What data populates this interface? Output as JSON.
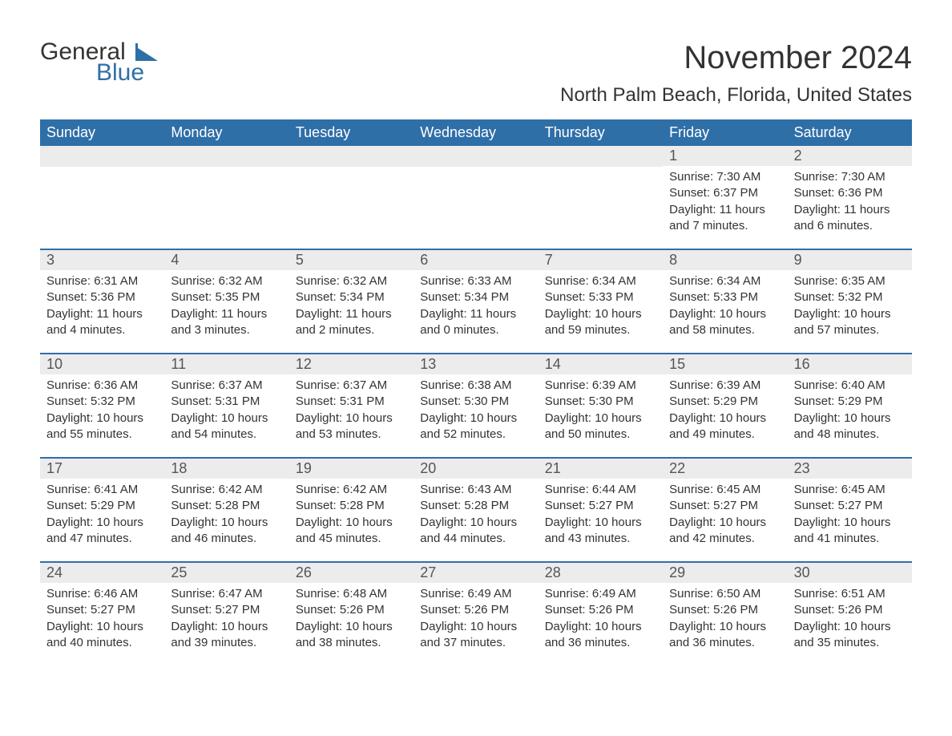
{
  "brand": {
    "top": "General",
    "bottom": "Blue",
    "icon_color": "#2f6fa8"
  },
  "title": "November 2024",
  "location": "North Palm Beach, Florida, United States",
  "colors": {
    "header_bg": "#2f6fa8",
    "header_text": "#ffffff",
    "daynum_bg": "#ececec",
    "row_border": "#2f6fa8",
    "body_text": "#333333",
    "page_bg": "#ffffff"
  },
  "weekdays": [
    "Sunday",
    "Monday",
    "Tuesday",
    "Wednesday",
    "Thursday",
    "Friday",
    "Saturday"
  ],
  "weeks": [
    [
      null,
      null,
      null,
      null,
      null,
      {
        "n": "1",
        "sunrise": "Sunrise: 7:30 AM",
        "sunset": "Sunset: 6:37 PM",
        "day1": "Daylight: 11 hours",
        "day2": "and 7 minutes."
      },
      {
        "n": "2",
        "sunrise": "Sunrise: 7:30 AM",
        "sunset": "Sunset: 6:36 PM",
        "day1": "Daylight: 11 hours",
        "day2": "and 6 minutes."
      }
    ],
    [
      {
        "n": "3",
        "sunrise": "Sunrise: 6:31 AM",
        "sunset": "Sunset: 5:36 PM",
        "day1": "Daylight: 11 hours",
        "day2": "and 4 minutes."
      },
      {
        "n": "4",
        "sunrise": "Sunrise: 6:32 AM",
        "sunset": "Sunset: 5:35 PM",
        "day1": "Daylight: 11 hours",
        "day2": "and 3 minutes."
      },
      {
        "n": "5",
        "sunrise": "Sunrise: 6:32 AM",
        "sunset": "Sunset: 5:34 PM",
        "day1": "Daylight: 11 hours",
        "day2": "and 2 minutes."
      },
      {
        "n": "6",
        "sunrise": "Sunrise: 6:33 AM",
        "sunset": "Sunset: 5:34 PM",
        "day1": "Daylight: 11 hours",
        "day2": "and 0 minutes."
      },
      {
        "n": "7",
        "sunrise": "Sunrise: 6:34 AM",
        "sunset": "Sunset: 5:33 PM",
        "day1": "Daylight: 10 hours",
        "day2": "and 59 minutes."
      },
      {
        "n": "8",
        "sunrise": "Sunrise: 6:34 AM",
        "sunset": "Sunset: 5:33 PM",
        "day1": "Daylight: 10 hours",
        "day2": "and 58 minutes."
      },
      {
        "n": "9",
        "sunrise": "Sunrise: 6:35 AM",
        "sunset": "Sunset: 5:32 PM",
        "day1": "Daylight: 10 hours",
        "day2": "and 57 minutes."
      }
    ],
    [
      {
        "n": "10",
        "sunrise": "Sunrise: 6:36 AM",
        "sunset": "Sunset: 5:32 PM",
        "day1": "Daylight: 10 hours",
        "day2": "and 55 minutes."
      },
      {
        "n": "11",
        "sunrise": "Sunrise: 6:37 AM",
        "sunset": "Sunset: 5:31 PM",
        "day1": "Daylight: 10 hours",
        "day2": "and 54 minutes."
      },
      {
        "n": "12",
        "sunrise": "Sunrise: 6:37 AM",
        "sunset": "Sunset: 5:31 PM",
        "day1": "Daylight: 10 hours",
        "day2": "and 53 minutes."
      },
      {
        "n": "13",
        "sunrise": "Sunrise: 6:38 AM",
        "sunset": "Sunset: 5:30 PM",
        "day1": "Daylight: 10 hours",
        "day2": "and 52 minutes."
      },
      {
        "n": "14",
        "sunrise": "Sunrise: 6:39 AM",
        "sunset": "Sunset: 5:30 PM",
        "day1": "Daylight: 10 hours",
        "day2": "and 50 minutes."
      },
      {
        "n": "15",
        "sunrise": "Sunrise: 6:39 AM",
        "sunset": "Sunset: 5:29 PM",
        "day1": "Daylight: 10 hours",
        "day2": "and 49 minutes."
      },
      {
        "n": "16",
        "sunrise": "Sunrise: 6:40 AM",
        "sunset": "Sunset: 5:29 PM",
        "day1": "Daylight: 10 hours",
        "day2": "and 48 minutes."
      }
    ],
    [
      {
        "n": "17",
        "sunrise": "Sunrise: 6:41 AM",
        "sunset": "Sunset: 5:29 PM",
        "day1": "Daylight: 10 hours",
        "day2": "and 47 minutes."
      },
      {
        "n": "18",
        "sunrise": "Sunrise: 6:42 AM",
        "sunset": "Sunset: 5:28 PM",
        "day1": "Daylight: 10 hours",
        "day2": "and 46 minutes."
      },
      {
        "n": "19",
        "sunrise": "Sunrise: 6:42 AM",
        "sunset": "Sunset: 5:28 PM",
        "day1": "Daylight: 10 hours",
        "day2": "and 45 minutes."
      },
      {
        "n": "20",
        "sunrise": "Sunrise: 6:43 AM",
        "sunset": "Sunset: 5:28 PM",
        "day1": "Daylight: 10 hours",
        "day2": "and 44 minutes."
      },
      {
        "n": "21",
        "sunrise": "Sunrise: 6:44 AM",
        "sunset": "Sunset: 5:27 PM",
        "day1": "Daylight: 10 hours",
        "day2": "and 43 minutes."
      },
      {
        "n": "22",
        "sunrise": "Sunrise: 6:45 AM",
        "sunset": "Sunset: 5:27 PM",
        "day1": "Daylight: 10 hours",
        "day2": "and 42 minutes."
      },
      {
        "n": "23",
        "sunrise": "Sunrise: 6:45 AM",
        "sunset": "Sunset: 5:27 PM",
        "day1": "Daylight: 10 hours",
        "day2": "and 41 minutes."
      }
    ],
    [
      {
        "n": "24",
        "sunrise": "Sunrise: 6:46 AM",
        "sunset": "Sunset: 5:27 PM",
        "day1": "Daylight: 10 hours",
        "day2": "and 40 minutes."
      },
      {
        "n": "25",
        "sunrise": "Sunrise: 6:47 AM",
        "sunset": "Sunset: 5:27 PM",
        "day1": "Daylight: 10 hours",
        "day2": "and 39 minutes."
      },
      {
        "n": "26",
        "sunrise": "Sunrise: 6:48 AM",
        "sunset": "Sunset: 5:26 PM",
        "day1": "Daylight: 10 hours",
        "day2": "and 38 minutes."
      },
      {
        "n": "27",
        "sunrise": "Sunrise: 6:49 AM",
        "sunset": "Sunset: 5:26 PM",
        "day1": "Daylight: 10 hours",
        "day2": "and 37 minutes."
      },
      {
        "n": "28",
        "sunrise": "Sunrise: 6:49 AM",
        "sunset": "Sunset: 5:26 PM",
        "day1": "Daylight: 10 hours",
        "day2": "and 36 minutes."
      },
      {
        "n": "29",
        "sunrise": "Sunrise: 6:50 AM",
        "sunset": "Sunset: 5:26 PM",
        "day1": "Daylight: 10 hours",
        "day2": "and 36 minutes."
      },
      {
        "n": "30",
        "sunrise": "Sunrise: 6:51 AM",
        "sunset": "Sunset: 5:26 PM",
        "day1": "Daylight: 10 hours",
        "day2": "and 35 minutes."
      }
    ]
  ]
}
